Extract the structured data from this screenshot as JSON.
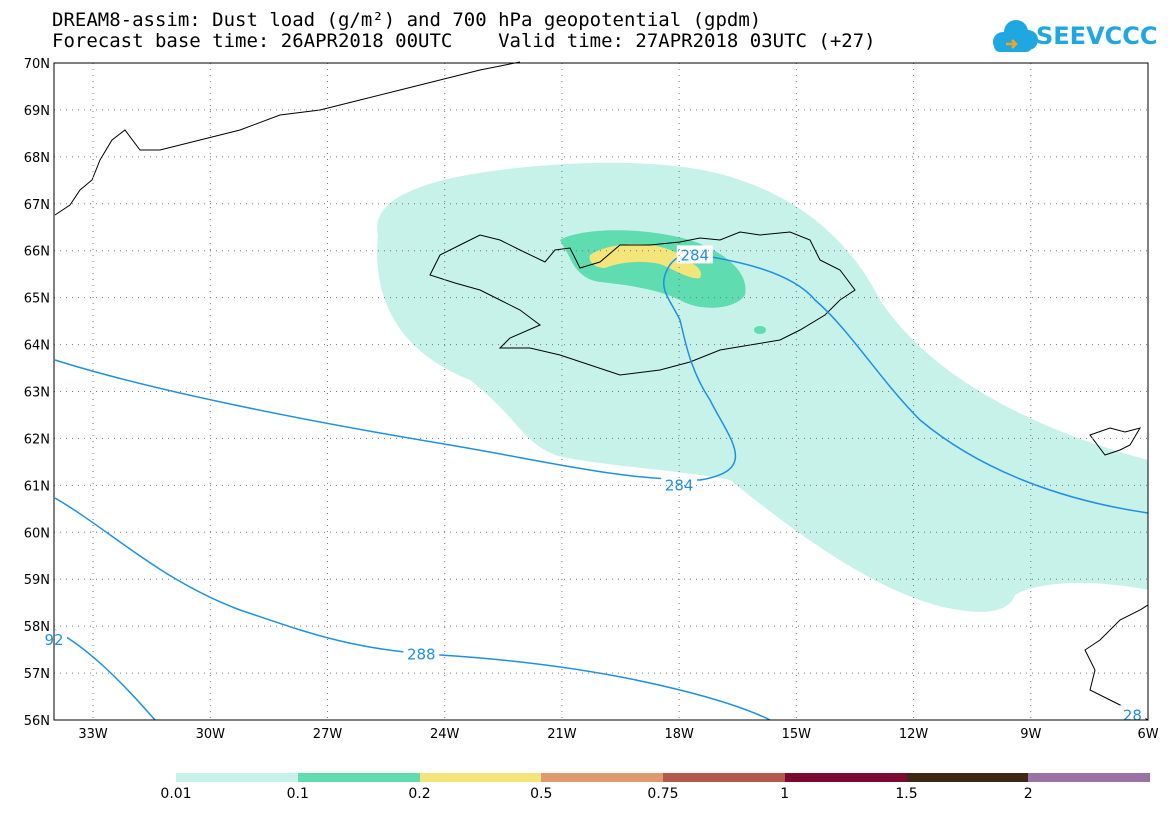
{
  "title": {
    "line1": "DREAM8-assim: Dust load (g/m²) and 700 hPa geopotential (gpdm)",
    "line2": "Forecast base time: 26APR2018 00UTC    Valid time: 27APR2018 03UTC (+27)"
  },
  "logo": {
    "text": "SEEVCCC",
    "color": "#1ea7e1",
    "icon": "cloud-icon"
  },
  "map": {
    "lon_range": [
      -34,
      -6
    ],
    "lat_range": [
      56,
      70
    ],
    "lat_ticks": [
      "70N",
      "69N",
      "68N",
      "67N",
      "66N",
      "65N",
      "64N",
      "63N",
      "62N",
      "61N",
      "60N",
      "59N",
      "58N",
      "57N",
      "56N"
    ],
    "lon_ticks": [
      "33W",
      "30W",
      "27W",
      "24W",
      "21W",
      "18W",
      "15W",
      "12W",
      "9W",
      "6W"
    ],
    "contour_color": "#1e90e6",
    "contour_labels": [
      {
        "text": "284",
        "lon": -17.6,
        "lat": 65.9
      },
      {
        "text": "284",
        "lon": -18.0,
        "lat": 61.0
      },
      {
        "text": "288",
        "lon": -24.6,
        "lat": 57.4
      },
      {
        "text": "92",
        "lon": -34.0,
        "lat": 57.7
      },
      {
        "text": "28",
        "lon": -6.4,
        "lat": 56.1
      }
    ]
  },
  "colorbar": {
    "colors": [
      "#c6f2ea",
      "#5fdcb0",
      "#f4e57a",
      "#e19a6e",
      "#b55a4a",
      "#7a0a30",
      "#3d2712",
      "#9b72a4"
    ],
    "labels": [
      "0.01",
      "0.1",
      "0.2",
      "0.5",
      "0.75",
      "1",
      "1.5",
      "2"
    ]
  }
}
